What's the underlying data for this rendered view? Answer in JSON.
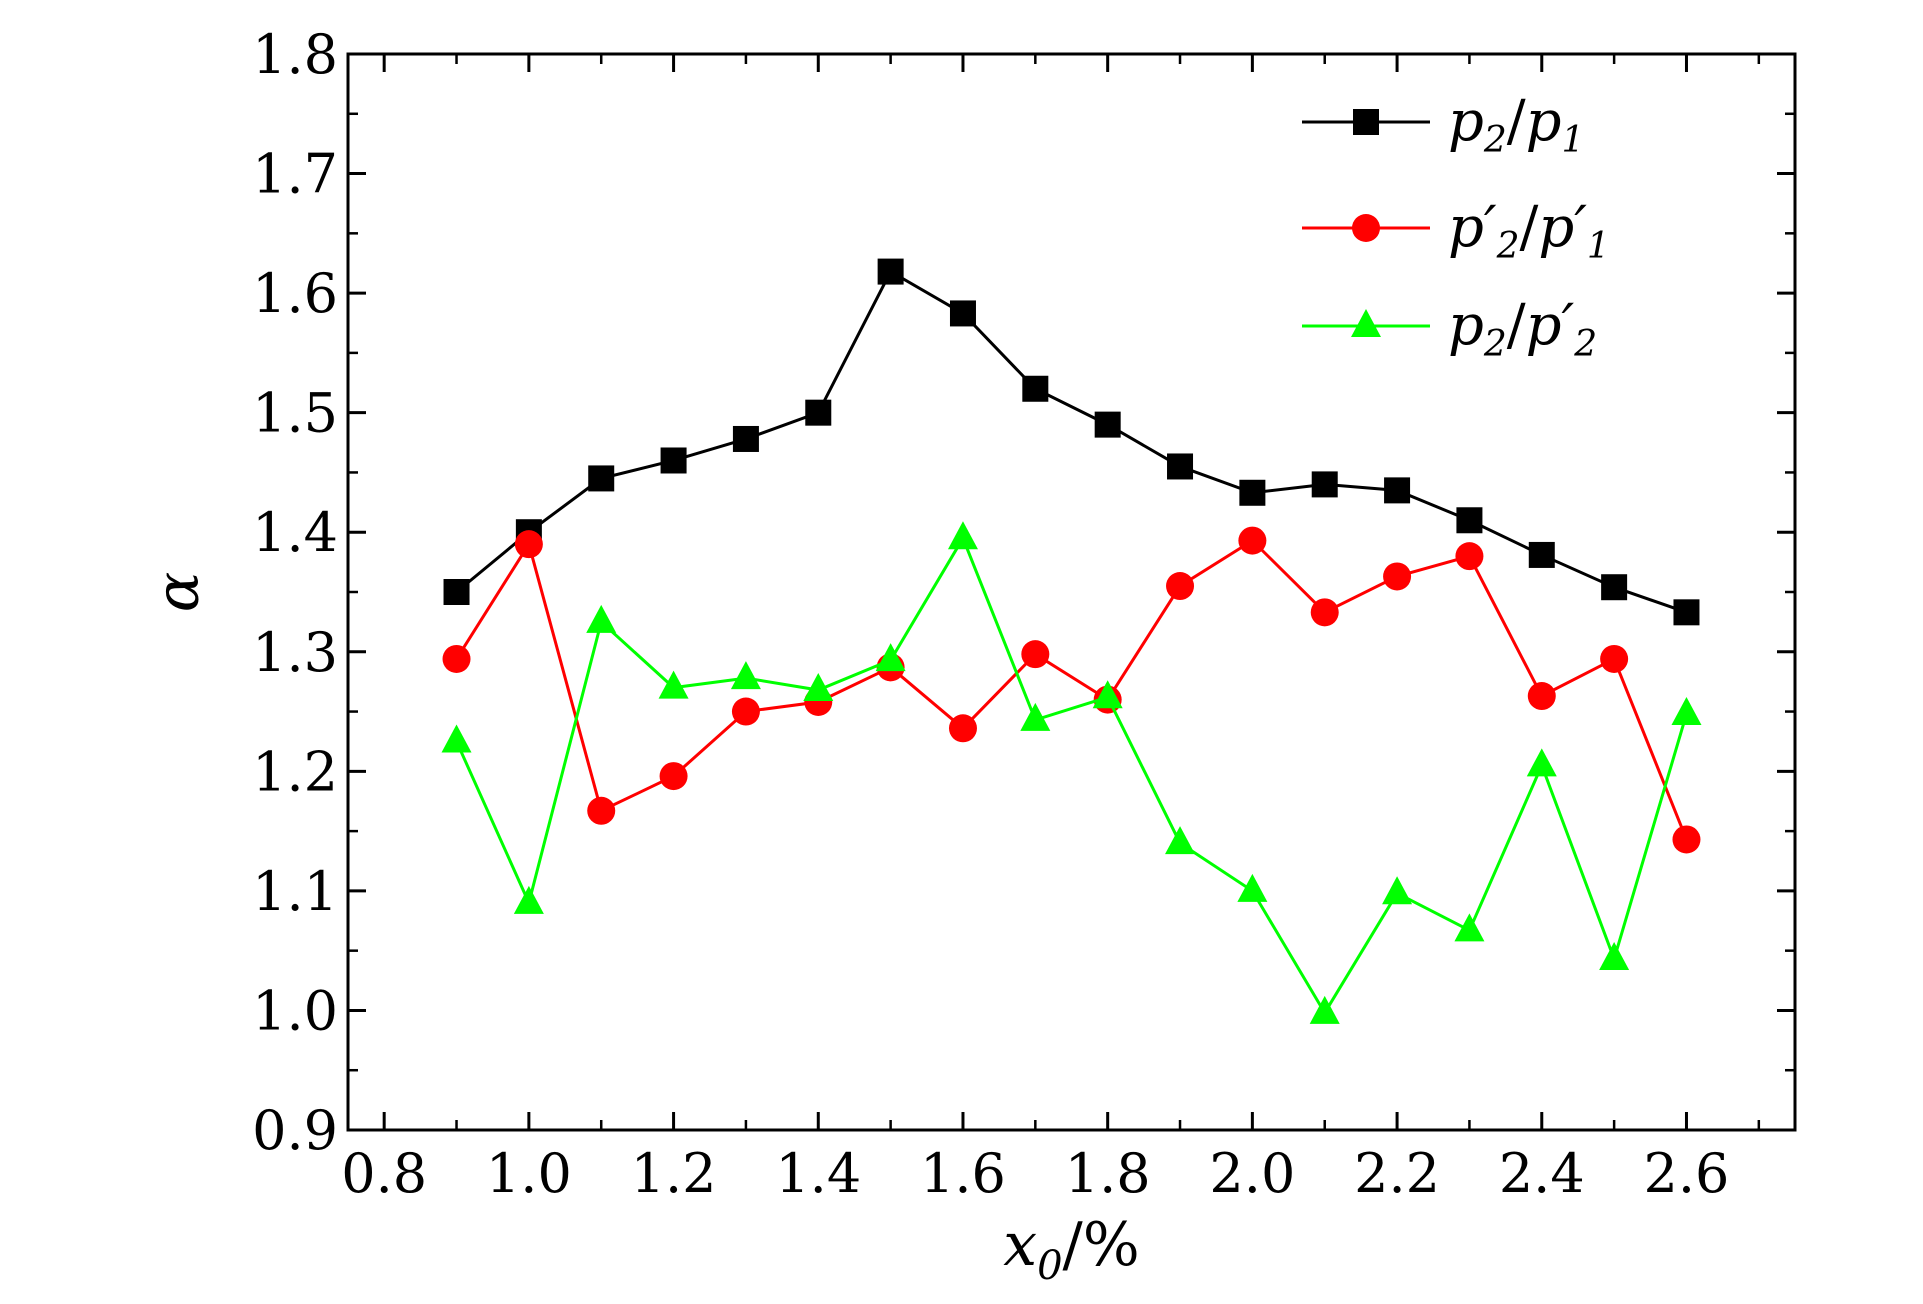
{
  "chart_data": {
    "type": "line",
    "xlabel": "x0/%",
    "ylabel": "α",
    "xlim": [
      0.75,
      2.75
    ],
    "ylim": [
      0.9,
      1.8
    ],
    "x_ticks": [
      "0.8",
      "1.0",
      "1.2",
      "1.4",
      "1.6",
      "1.8",
      "2.0",
      "2.2",
      "2.4",
      "2.6"
    ],
    "y_ticks": [
      "0.9",
      "1.0",
      "1.1",
      "1.2",
      "1.3",
      "1.4",
      "1.5",
      "1.6",
      "1.7",
      "1.8"
    ],
    "legend_position": "top-right",
    "grid": false,
    "x": [
      0.9,
      1.0,
      1.1,
      1.2,
      1.3,
      1.4,
      1.5,
      1.6,
      1.7,
      1.8,
      1.9,
      2.0,
      2.1,
      2.2,
      2.3,
      2.4,
      2.5,
      2.6
    ],
    "series": [
      {
        "name": "p2/p1",
        "color": "#000000",
        "marker": "square",
        "values": [
          1.35,
          1.4,
          1.445,
          1.46,
          1.478,
          1.5,
          1.618,
          1.583,
          1.52,
          1.49,
          1.455,
          1.433,
          1.44,
          1.435,
          1.41,
          1.381,
          1.354,
          1.333
        ]
      },
      {
        "name": "p2′/p1′",
        "color": "#ff0000",
        "marker": "circle",
        "values": [
          1.294,
          1.39,
          1.167,
          1.196,
          1.25,
          1.258,
          1.287,
          1.236,
          1.298,
          1.26,
          1.355,
          1.393,
          1.333,
          1.363,
          1.38,
          1.263,
          1.294,
          1.143
        ]
      },
      {
        "name": "p2/p2′",
        "color": "#00ff00",
        "marker": "triangle",
        "values": [
          1.225,
          1.09,
          1.325,
          1.27,
          1.278,
          1.268,
          1.293,
          1.395,
          1.243,
          1.262,
          1.14,
          1.1,
          0.998,
          1.098,
          1.067,
          1.205,
          1.043,
          1.248
        ]
      }
    ]
  }
}
